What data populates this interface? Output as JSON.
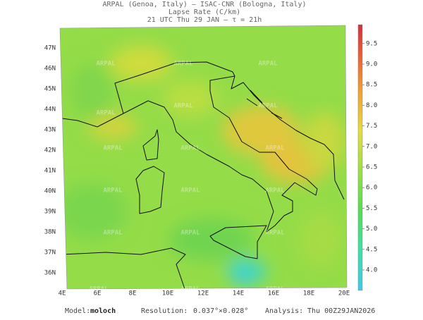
{
  "header": {
    "line1": "ARPAL (Genoa, Italy)  —  ISAC-CNR (Bologna, Italy)",
    "line2": "Lapse Rate (C/km)",
    "line3": "21 UTC Thu 29 JAN  —  τ = 21h"
  },
  "map": {
    "lon_labels": [
      "4E",
      "6E",
      "8E",
      "10E",
      "12E",
      "14E",
      "16E",
      "18E",
      "20E"
    ],
    "lat_labels": [
      "36N",
      "37N",
      "38N",
      "39N",
      "40N",
      "41N",
      "42N",
      "43N",
      "44N",
      "45N",
      "46N",
      "47N"
    ],
    "watermark": "ARPAL"
  },
  "colorbar": {
    "ticks": [
      "4.0",
      "4.5",
      "5.0",
      "5.5",
      "6.0",
      "6.5",
      "7.0",
      "7.5",
      "8.0",
      "8.5",
      "9.0",
      "9.5"
    ]
  },
  "footer": {
    "model_label": "Model:",
    "model": "moloch",
    "resolution_label": "Resolution:",
    "resolution": "0.037°×0.028°",
    "analysis_label": "Analysis:",
    "analysis": "Thu 00Z29JAN2026"
  }
}
